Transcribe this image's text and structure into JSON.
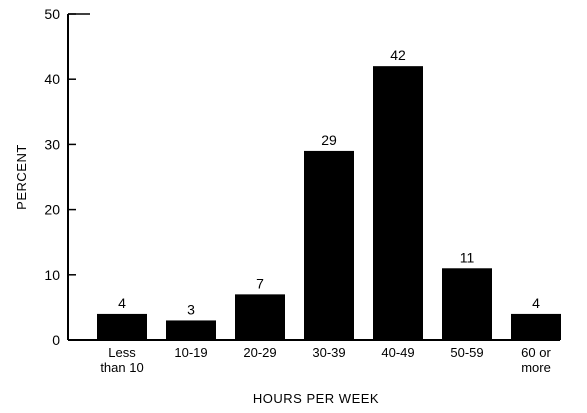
{
  "chart_data": {
    "type": "bar",
    "categories": [
      [
        "Less",
        "than 10"
      ],
      [
        "10-19"
      ],
      [
        "20-29"
      ],
      [
        "30-39"
      ],
      [
        "40-49"
      ],
      [
        "50-59"
      ],
      [
        "60 or",
        "more"
      ]
    ],
    "values": [
      4,
      3,
      7,
      29,
      42,
      11,
      4
    ],
    "data_labels": [
      "4",
      "3",
      "7",
      "29",
      "42",
      "11",
      "4"
    ],
    "xlabel": "HOURS PER WEEK",
    "ylabel": "PERCENT",
    "ylim": [
      0,
      50
    ],
    "yticks": [
      0,
      10,
      20,
      30,
      40,
      50
    ],
    "grid": false,
    "bar_color": "#000000"
  }
}
